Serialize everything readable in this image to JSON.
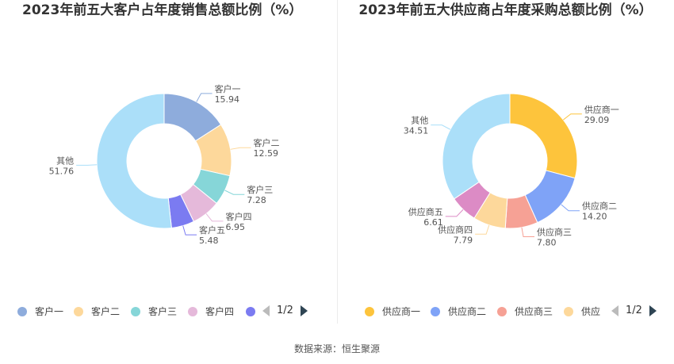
{
  "chart_data": [
    {
      "type": "pie",
      "title": "2023年前五大客户占年度销售总额比例（%）",
      "categories": [
        "客户一",
        "客户二",
        "客户三",
        "客户四",
        "客户五",
        "其他"
      ],
      "values": [
        15.94,
        12.59,
        7.28,
        6.95,
        5.48,
        51.76
      ],
      "value_labels": [
        "15.94",
        "12.59",
        "7.28",
        "6.95",
        "5.48",
        "51.76"
      ],
      "colors": [
        "#8eacdc",
        "#fdd89b",
        "#86d6d8",
        "#e5b9da",
        "#7b7bf1",
        "#abdff9"
      ],
      "legend": {
        "items": [
          "客户一",
          "客户二",
          "客户三",
          "客户四"
        ],
        "page": "1/2"
      }
    },
    {
      "type": "pie",
      "title": "2023年前五大供应商占年度采购总额比例（%）",
      "categories": [
        "供应商一",
        "供应商二",
        "供应商三",
        "供应商四",
        "供应商五",
        "其他"
      ],
      "values": [
        29.09,
        14.2,
        7.8,
        7.79,
        6.61,
        34.51
      ],
      "value_labels": [
        "29.09",
        "14.20",
        "7.80",
        "7.79",
        "6.61",
        "34.51"
      ],
      "colors": [
        "#fdc43c",
        "#7fa3f7",
        "#f6a195",
        "#fdd89b",
        "#dc8bc5",
        "#abdff9"
      ],
      "legend": {
        "items": [
          "供应商一",
          "供应商二",
          "供应商三",
          "供应"
        ],
        "page": "1/2"
      }
    }
  ],
  "footer": {
    "source": "数据来源：恒生聚源"
  }
}
